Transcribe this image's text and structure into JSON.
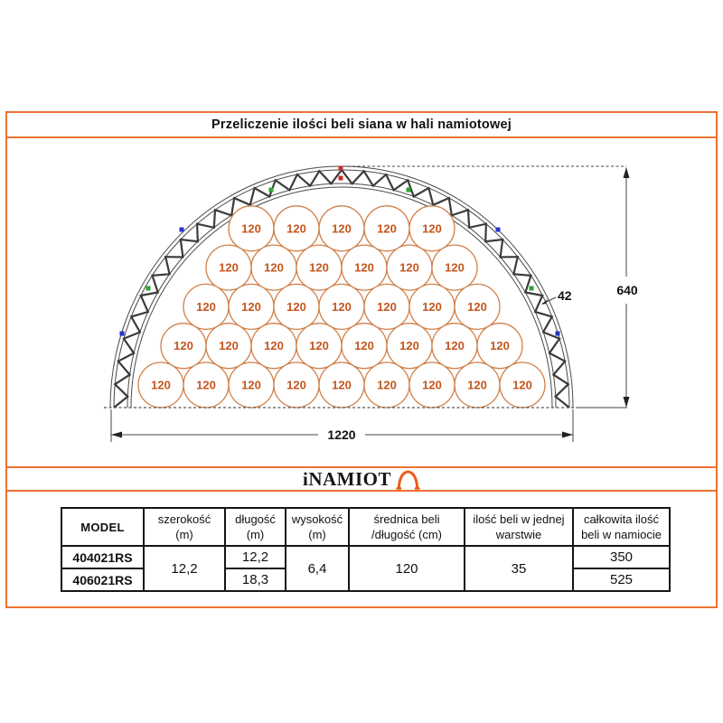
{
  "title": "Przeliczenie ilości beli siana w hali namiotowej",
  "logo": {
    "text": "iNAMIOT"
  },
  "accent_color": "#ed7132",
  "diagram": {
    "bale_label": "120",
    "bale_rows": [
      5,
      6,
      7,
      8,
      9
    ],
    "dim_width_label": "1220",
    "dim_height_label": "640",
    "dim_truss_label": "42",
    "colors": {
      "bale_stroke": "#d08048",
      "bale_text": "#c4561d",
      "truss": "#3b3b3b",
      "marker_red": "#cc2a2a",
      "marker_green": "#2fa32f",
      "marker_blue": "#2633cc"
    }
  },
  "table": {
    "headers": [
      {
        "line1": "MODEL",
        "line2": ""
      },
      {
        "line1": "szerokość",
        "line2": "(m)"
      },
      {
        "line1": "długość",
        "line2": "(m)"
      },
      {
        "line1": "wysokość",
        "line2": "(m)"
      },
      {
        "line1": "średnica beli",
        "line2": "/długość (cm)"
      },
      {
        "line1": "ilość beli w jednej",
        "line2": "warstwie"
      },
      {
        "line1": "całkowita ilość",
        "line2": "beli w namiocie"
      }
    ],
    "rows": [
      {
        "model": "404021RS",
        "szerokosc": "12,2",
        "dlugosc": "12,2",
        "wysokosc": "6,4",
        "srednica": "120",
        "beli_warstwa": "35",
        "beli_total": "350"
      },
      {
        "model": "406021RS",
        "dlugosc": "18,3",
        "beli_total": "525"
      }
    ]
  }
}
